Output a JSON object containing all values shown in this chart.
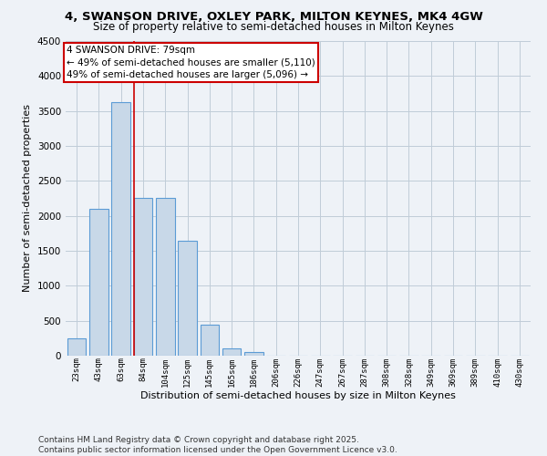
{
  "title": "4, SWANSON DRIVE, OXLEY PARK, MILTON KEYNES, MK4 4GW",
  "subtitle": "Size of property relative to semi-detached houses in Milton Keynes",
  "xlabel": "Distribution of semi-detached houses by size in Milton Keynes",
  "ylabel": "Number of semi-detached properties",
  "bar_labels": [
    "23sqm",
    "43sqm",
    "63sqm",
    "84sqm",
    "104sqm",
    "125sqm",
    "145sqm",
    "165sqm",
    "186sqm",
    "206sqm",
    "226sqm",
    "247sqm",
    "267sqm",
    "287sqm",
    "308sqm",
    "328sqm",
    "349sqm",
    "369sqm",
    "389sqm",
    "410sqm",
    "430sqm"
  ],
  "bar_heights": [
    250,
    2100,
    3620,
    2250,
    2250,
    1640,
    450,
    100,
    50,
    0,
    0,
    0,
    0,
    0,
    0,
    0,
    0,
    0,
    0,
    0,
    0
  ],
  "bar_color": "#c8d8e8",
  "bar_edge_color": "#5b9bd5",
  "grid_color": "#c0ccd8",
  "background_color": "#eef2f7",
  "vline_color": "#cc0000",
  "annotation_text": "4 SWANSON DRIVE: 79sqm\n← 49% of semi-detached houses are smaller (5,110)\n49% of semi-detached houses are larger (5,096) →",
  "annotation_box_facecolor": "#ffffff",
  "annotation_box_edgecolor": "#cc0000",
  "ylim": [
    0,
    4500
  ],
  "yticks": [
    0,
    500,
    1000,
    1500,
    2000,
    2500,
    3000,
    3500,
    4000,
    4500
  ],
  "footnote": "Contains HM Land Registry data © Crown copyright and database right 2025.\nContains public sector information licensed under the Open Government Licence v3.0.",
  "title_fontsize": 9.5,
  "subtitle_fontsize": 8.5,
  "xlabel_fontsize": 8,
  "ylabel_fontsize": 8,
  "tick_fontsize": 6.5,
  "annotation_fontsize": 7.5,
  "footnote_fontsize": 6.5
}
